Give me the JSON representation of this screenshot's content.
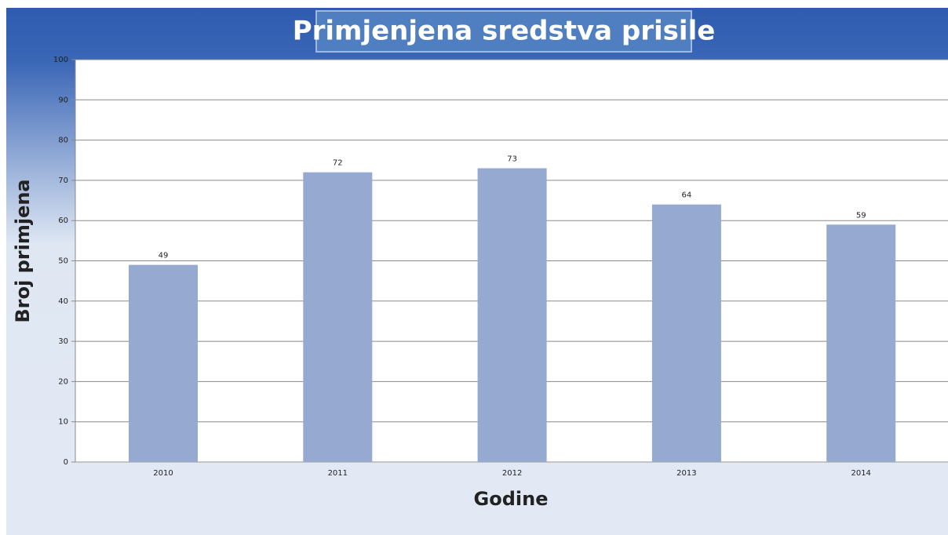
{
  "chart_data": {
    "type": "bar",
    "title": "Primjenjena sredstva prisile",
    "x_label": "Godine",
    "y_label": "Broj primjena",
    "categories": [
      "2010",
      "2011",
      "2012",
      "2013",
      "2014"
    ],
    "values": [
      49,
      72,
      73,
      64,
      59
    ],
    "color": "#95a9d1",
    "ylim": [
      0,
      100
    ],
    "yticks": [
      0,
      10,
      20,
      30,
      40,
      50,
      60,
      70,
      80,
      90,
      100
    ],
    "grid": true
  }
}
